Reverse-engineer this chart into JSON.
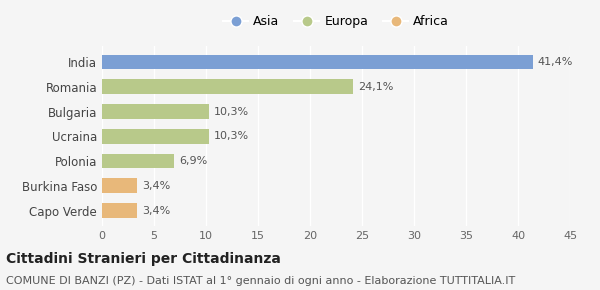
{
  "categories": [
    "Capo Verde",
    "Burkina Faso",
    "Polonia",
    "Ucraina",
    "Bulgaria",
    "Romania",
    "India"
  ],
  "values": [
    3.4,
    3.4,
    6.9,
    10.3,
    10.3,
    24.1,
    41.4
  ],
  "labels": [
    "3,4%",
    "3,4%",
    "6,9%",
    "10,3%",
    "10,3%",
    "24,1%",
    "41,4%"
  ],
  "colors": [
    "#e8b87a",
    "#e8b87a",
    "#b8c98a",
    "#b8c98a",
    "#b8c98a",
    "#b8c98a",
    "#7b9fd4"
  ],
  "legend": [
    {
      "label": "Asia",
      "color": "#7b9fd4"
    },
    {
      "label": "Europa",
      "color": "#b8c98a"
    },
    {
      "label": "Africa",
      "color": "#e8b87a"
    }
  ],
  "xlim": [
    0,
    45
  ],
  "xticks": [
    0,
    5,
    10,
    15,
    20,
    25,
    30,
    35,
    40,
    45
  ],
  "title": "Cittadini Stranieri per Cittadinanza",
  "subtitle": "COMUNE DI BANZI (PZ) - Dati ISTAT al 1° gennaio di ogni anno - Elaborazione TUTTITALIA.IT",
  "background_color": "#f5f5f5",
  "bar_height": 0.6,
  "title_fontsize": 10,
  "subtitle_fontsize": 8,
  "label_fontsize": 8,
  "ytick_fontsize": 8.5,
  "xtick_fontsize": 8
}
